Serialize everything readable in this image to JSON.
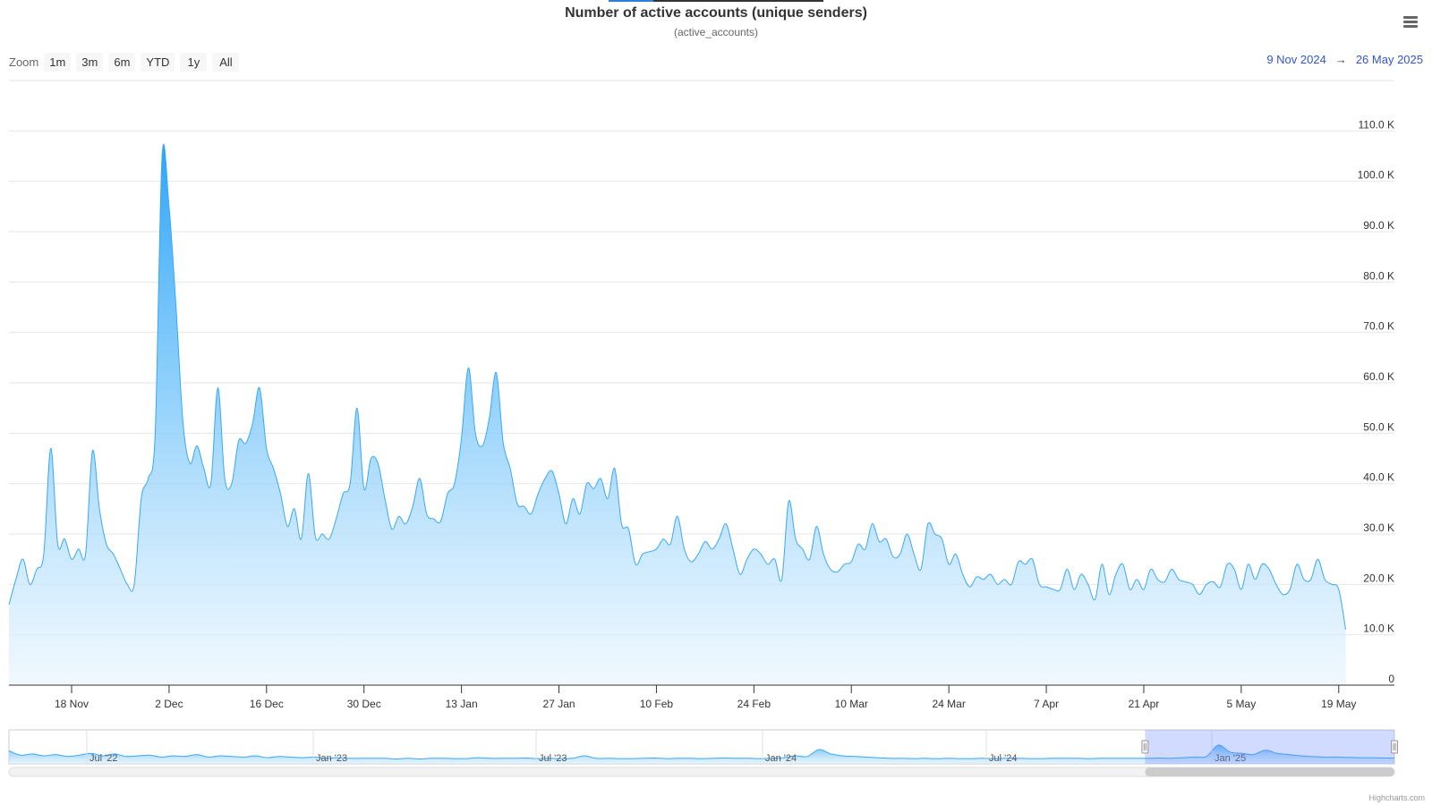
{
  "chart_data": {
    "type": "area",
    "title": "Number of active accounts (unique senders)",
    "subtitle": "(active_accounts)",
    "zoom": {
      "label": "Zoom",
      "buttons": [
        "1m",
        "3m",
        "6m",
        "YTD",
        "1y",
        "All"
      ]
    },
    "range": {
      "from": "9 Nov 2024",
      "arrow": "→",
      "to": "26 May 2025"
    },
    "yaxis": {
      "ylim": [
        0,
        110000
      ],
      "ticks": [
        0,
        10000,
        20000,
        30000,
        40000,
        50000,
        60000,
        70000,
        80000,
        90000,
        100000,
        110000
      ],
      "tick_labels": [
        "0",
        "10.0 K",
        "20.0 K",
        "30.0 K",
        "40.0 K",
        "50.0 K",
        "60.0 K",
        "70.0 K",
        "80.0 K",
        "90.0 K",
        "100.0 K",
        "110.0 K"
      ],
      "position": "right",
      "grid": true
    },
    "xaxis": {
      "start": "2024-11-09",
      "end": "2025-05-27",
      "ticks": [
        {
          "date": "2024-11-18",
          "label": "18 Nov"
        },
        {
          "date": "2024-12-02",
          "label": "2 Dec"
        },
        {
          "date": "2024-12-16",
          "label": "16 Dec"
        },
        {
          "date": "2024-12-30",
          "label": "30 Dec"
        },
        {
          "date": "2025-01-13",
          "label": "13 Jan"
        },
        {
          "date": "2025-01-27",
          "label": "27 Jan"
        },
        {
          "date": "2025-02-10",
          "label": "10 Feb"
        },
        {
          "date": "2025-02-24",
          "label": "24 Feb"
        },
        {
          "date": "2025-03-10",
          "label": "10 Mar"
        },
        {
          "date": "2025-03-24",
          "label": "24 Mar"
        },
        {
          "date": "2025-04-07",
          "label": "7 Apr"
        },
        {
          "date": "2025-04-21",
          "label": "21 Apr"
        },
        {
          "date": "2025-05-05",
          "label": "5 May"
        },
        {
          "date": "2025-05-19",
          "label": "19 May"
        }
      ]
    },
    "series": [
      {
        "color": "#3aa8f5",
        "points": [
          [
            "2024-11-09",
            16000
          ],
          [
            "2024-11-10",
            21000
          ],
          [
            "2024-11-11",
            25000
          ],
          [
            "2024-11-12",
            20000
          ],
          [
            "2024-11-13",
            23000
          ],
          [
            "2024-11-14",
            26000
          ],
          [
            "2024-11-15",
            47000
          ],
          [
            "2024-11-16",
            28000
          ],
          [
            "2024-11-17",
            29000
          ],
          [
            "2024-11-18",
            25000
          ],
          [
            "2024-11-19",
            27000
          ],
          [
            "2024-11-20",
            26000
          ],
          [
            "2024-11-21",
            46500
          ],
          [
            "2024-11-22",
            35000
          ],
          [
            "2024-11-23",
            28000
          ],
          [
            "2024-11-24",
            26000
          ],
          [
            "2024-11-25",
            23000
          ],
          [
            "2024-11-26",
            20000
          ],
          [
            "2024-11-27",
            20000
          ],
          [
            "2024-11-28",
            37000
          ],
          [
            "2024-11-29",
            41000
          ],
          [
            "2024-11-30",
            50000
          ],
          [
            "2024-12-01",
            105000
          ],
          [
            "2024-12-02",
            95000
          ],
          [
            "2024-12-03",
            75000
          ],
          [
            "2024-12-04",
            52000
          ],
          [
            "2024-12-05",
            44000
          ],
          [
            "2024-12-06",
            47500
          ],
          [
            "2024-12-07",
            43000
          ],
          [
            "2024-12-08",
            40000
          ],
          [
            "2024-12-09",
            59000
          ],
          [
            "2024-12-10",
            41000
          ],
          [
            "2024-12-11",
            40000
          ],
          [
            "2024-12-12",
            48500
          ],
          [
            "2024-12-13",
            48000
          ],
          [
            "2024-12-14",
            52000
          ],
          [
            "2024-12-15",
            59000
          ],
          [
            "2024-12-16",
            47000
          ],
          [
            "2024-12-17",
            43000
          ],
          [
            "2024-12-18",
            38000
          ],
          [
            "2024-12-19",
            31500
          ],
          [
            "2024-12-20",
            35000
          ],
          [
            "2024-12-21",
            29000
          ],
          [
            "2024-12-22",
            42000
          ],
          [
            "2024-12-23",
            29500
          ],
          [
            "2024-12-24",
            30000
          ],
          [
            "2024-12-25",
            29000
          ],
          [
            "2024-12-26",
            33000
          ],
          [
            "2024-12-27",
            38000
          ],
          [
            "2024-12-28",
            40000
          ],
          [
            "2024-12-29",
            55000
          ],
          [
            "2024-12-30",
            39000
          ],
          [
            "2024-12-31",
            45000
          ],
          [
            "2025-01-01",
            44000
          ],
          [
            "2025-01-02",
            37000
          ],
          [
            "2025-01-03",
            31000
          ],
          [
            "2025-01-04",
            33500
          ],
          [
            "2025-01-05",
            32000
          ],
          [
            "2025-01-06",
            35500
          ],
          [
            "2025-01-07",
            41000
          ],
          [
            "2025-01-08",
            34000
          ],
          [
            "2025-01-09",
            33000
          ],
          [
            "2025-01-10",
            32500
          ],
          [
            "2025-01-11",
            38000
          ],
          [
            "2025-01-12",
            40000
          ],
          [
            "2025-01-13",
            49000
          ],
          [
            "2025-01-14",
            63000
          ],
          [
            "2025-01-15",
            50000
          ],
          [
            "2025-01-16",
            47500
          ],
          [
            "2025-01-17",
            53000
          ],
          [
            "2025-01-18",
            62000
          ],
          [
            "2025-01-19",
            48000
          ],
          [
            "2025-01-20",
            43000
          ],
          [
            "2025-01-21",
            36000
          ],
          [
            "2025-01-22",
            35500
          ],
          [
            "2025-01-23",
            34000
          ],
          [
            "2025-01-24",
            38000
          ],
          [
            "2025-01-25",
            41000
          ],
          [
            "2025-01-26",
            42500
          ],
          [
            "2025-01-27",
            38000
          ],
          [
            "2025-01-28",
            32000
          ],
          [
            "2025-01-29",
            37000
          ],
          [
            "2025-01-30",
            34000
          ],
          [
            "2025-01-31",
            40000
          ],
          [
            "2025-02-01",
            39000
          ],
          [
            "2025-02-02",
            41000
          ],
          [
            "2025-02-03",
            37000
          ],
          [
            "2025-02-04",
            43000
          ],
          [
            "2025-02-05",
            32000
          ],
          [
            "2025-02-06",
            31000
          ],
          [
            "2025-02-07",
            24000
          ],
          [
            "2025-02-08",
            26000
          ],
          [
            "2025-02-09",
            26500
          ],
          [
            "2025-02-10",
            27000
          ],
          [
            "2025-02-11",
            29000
          ],
          [
            "2025-02-12",
            28000
          ],
          [
            "2025-02-13",
            33500
          ],
          [
            "2025-02-14",
            27000
          ],
          [
            "2025-02-15",
            24500
          ],
          [
            "2025-02-16",
            26000
          ],
          [
            "2025-02-17",
            28500
          ],
          [
            "2025-02-18",
            27000
          ],
          [
            "2025-02-19",
            29000
          ],
          [
            "2025-02-20",
            32000
          ],
          [
            "2025-02-21",
            27000
          ],
          [
            "2025-02-22",
            22000
          ],
          [
            "2025-02-23",
            25000
          ],
          [
            "2025-02-24",
            27000
          ],
          [
            "2025-02-25",
            26000
          ],
          [
            "2025-02-26",
            24000
          ],
          [
            "2025-02-27",
            25000
          ],
          [
            "2025-02-28",
            21000
          ],
          [
            "2025-03-01",
            36500
          ],
          [
            "2025-03-02",
            29000
          ],
          [
            "2025-03-03",
            27000
          ],
          [
            "2025-03-04",
            25000
          ],
          [
            "2025-03-05",
            31500
          ],
          [
            "2025-03-06",
            26000
          ],
          [
            "2025-03-07",
            23000
          ],
          [
            "2025-03-08",
            22500
          ],
          [
            "2025-03-09",
            24000
          ],
          [
            "2025-03-10",
            24500
          ],
          [
            "2025-03-11",
            28000
          ],
          [
            "2025-03-12",
            27000
          ],
          [
            "2025-03-13",
            32000
          ],
          [
            "2025-03-14",
            28500
          ],
          [
            "2025-03-15",
            29000
          ],
          [
            "2025-03-16",
            25500
          ],
          [
            "2025-03-17",
            26000
          ],
          [
            "2025-03-18",
            30000
          ],
          [
            "2025-03-19",
            26000
          ],
          [
            "2025-03-20",
            23000
          ],
          [
            "2025-03-21",
            32000
          ],
          [
            "2025-03-22",
            30000
          ],
          [
            "2025-03-23",
            29000
          ],
          [
            "2025-03-24",
            24000
          ],
          [
            "2025-03-25",
            26000
          ],
          [
            "2025-03-26",
            22000
          ],
          [
            "2025-03-27",
            19500
          ],
          [
            "2025-03-28",
            21500
          ],
          [
            "2025-03-29",
            21000
          ],
          [
            "2025-03-30",
            22000
          ],
          [
            "2025-03-31",
            20000
          ],
          [
            "2025-04-01",
            21000
          ],
          [
            "2025-04-02",
            20000
          ],
          [
            "2025-04-03",
            24500
          ],
          [
            "2025-04-04",
            24000
          ],
          [
            "2025-04-05",
            25000
          ],
          [
            "2025-04-06",
            20000
          ],
          [
            "2025-04-07",
            19500
          ],
          [
            "2025-04-08",
            19000
          ],
          [
            "2025-04-09",
            19000
          ],
          [
            "2025-04-10",
            23000
          ],
          [
            "2025-04-11",
            19000
          ],
          [
            "2025-04-12",
            22000
          ],
          [
            "2025-04-13",
            20000
          ],
          [
            "2025-04-14",
            17000
          ],
          [
            "2025-04-15",
            24000
          ],
          [
            "2025-04-16",
            18000
          ],
          [
            "2025-04-17",
            22000
          ],
          [
            "2025-04-18",
            24000
          ],
          [
            "2025-04-19",
            19000
          ],
          [
            "2025-04-20",
            21000
          ],
          [
            "2025-04-21",
            19000
          ],
          [
            "2025-04-22",
            23000
          ],
          [
            "2025-04-23",
            21000
          ],
          [
            "2025-04-24",
            20500
          ],
          [
            "2025-04-25",
            23000
          ],
          [
            "2025-04-26",
            21000
          ],
          [
            "2025-04-27",
            20500
          ],
          [
            "2025-04-28",
            20000
          ],
          [
            "2025-04-29",
            18000
          ],
          [
            "2025-04-30",
            20000
          ],
          [
            "2025-05-01",
            20500
          ],
          [
            "2025-05-02",
            19500
          ],
          [
            "2025-05-03",
            24000
          ],
          [
            "2025-05-04",
            23000
          ],
          [
            "2025-05-05",
            19000
          ],
          [
            "2025-05-06",
            24000
          ],
          [
            "2025-05-07",
            21000
          ],
          [
            "2025-05-08",
            24000
          ],
          [
            "2025-05-09",
            23000
          ],
          [
            "2025-05-10",
            20000
          ],
          [
            "2025-05-11",
            18000
          ],
          [
            "2025-05-12",
            19000
          ],
          [
            "2025-05-13",
            24000
          ],
          [
            "2025-05-14",
            21000
          ],
          [
            "2025-05-15",
            21000
          ],
          [
            "2025-05-16",
            25000
          ],
          [
            "2025-05-17",
            21000
          ],
          [
            "2025-05-18",
            20000
          ],
          [
            "2025-05-19",
            19000
          ],
          [
            "2025-05-20",
            11000
          ]
        ]
      }
    ],
    "navigator": {
      "labels": [
        "Jul '22",
        "Jan '23",
        "Jul '23",
        "Jan '24",
        "Jul '24",
        "Jan '25"
      ],
      "series_shape": [
        0.9,
        0.55,
        0.65,
        0.5,
        0.6,
        0.45,
        0.55,
        0.7,
        0.5,
        0.65,
        0.45,
        0.5,
        0.55,
        0.4,
        0.5,
        0.45,
        0.6,
        0.4,
        0.5,
        0.45,
        0.4,
        0.5,
        0.35,
        0.45,
        0.4,
        0.35,
        0.4,
        0.3,
        0.35,
        0.3,
        0.3,
        0.3,
        0.3,
        0.25,
        0.3,
        0.25,
        0.3,
        0.3,
        0.28,
        0.28,
        0.35,
        0.3,
        0.3,
        0.3,
        0.32,
        0.28,
        0.3,
        0.28,
        0.3,
        0.5,
        0.3,
        0.3,
        0.28,
        0.28,
        0.3,
        0.32,
        0.28,
        0.3,
        0.3,
        0.28,
        0.3,
        0.32,
        0.3,
        0.3,
        0.28,
        0.3,
        0.35,
        0.5,
        0.45,
        1.0,
        0.65,
        0.5,
        0.45,
        0.4,
        0.35,
        0.3,
        0.3,
        0.28,
        0.3,
        0.28,
        0.3,
        0.28,
        0.28,
        0.3,
        0.28,
        0.3,
        0.3,
        0.28,
        0.28,
        0.3,
        0.3,
        0.3,
        0.28,
        0.3,
        0.3,
        0.3,
        0.3,
        0.3,
        0.32,
        0.3,
        0.35,
        0.4,
        0.45,
        1.35,
        0.8,
        0.7,
        0.6,
        0.95,
        0.7,
        0.6,
        0.5,
        0.45,
        0.4,
        0.4,
        0.38,
        0.35,
        0.35,
        0.33,
        0.32
      ],
      "selected_from_fraction": 0.82
    },
    "credit": "Highcharts.com"
  }
}
